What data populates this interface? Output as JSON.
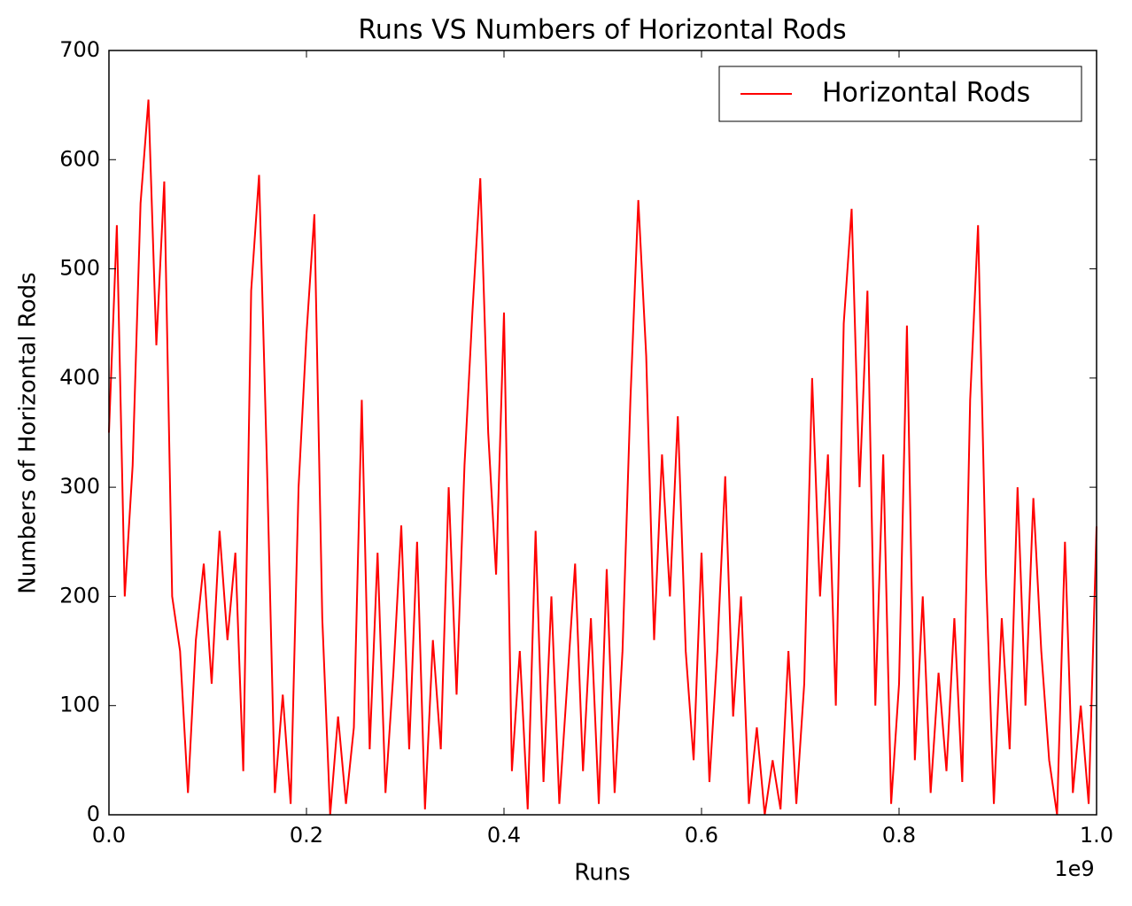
{
  "chart_data": {
    "type": "line",
    "title": "Runs VS Numbers of Horizontal Rods",
    "xlabel": "Runs",
    "ylabel": "Numbers of Horizontal Rods",
    "x_offset_label": "1e9",
    "x": [
      0.0,
      0.008,
      0.016,
      0.024,
      0.032,
      0.04,
      0.048,
      0.056,
      0.064,
      0.072,
      0.08,
      0.088,
      0.096,
      0.104,
      0.112,
      0.12,
      0.128,
      0.136,
      0.144,
      0.152,
      0.16,
      0.168,
      0.176,
      0.184,
      0.192,
      0.2,
      0.208,
      0.216,
      0.224,
      0.232,
      0.24,
      0.248,
      0.256,
      0.264,
      0.272,
      0.28,
      0.288,
      0.296,
      0.304,
      0.312,
      0.32,
      0.328,
      0.336,
      0.344,
      0.352,
      0.36,
      0.368,
      0.376,
      0.384,
      0.392,
      0.4,
      0.408,
      0.416,
      0.424,
      0.432,
      0.44,
      0.448,
      0.456,
      0.464,
      0.472,
      0.48,
      0.488,
      0.496,
      0.504,
      0.512,
      0.52,
      0.528,
      0.536,
      0.544,
      0.552,
      0.56,
      0.568,
      0.576,
      0.584,
      0.592,
      0.6,
      0.608,
      0.616,
      0.624,
      0.632,
      0.64,
      0.648,
      0.656,
      0.664,
      0.672,
      0.68,
      0.688,
      0.696,
      0.704,
      0.712,
      0.72,
      0.728,
      0.736,
      0.744,
      0.752,
      0.76,
      0.768,
      0.776,
      0.784,
      0.792,
      0.8,
      0.808,
      0.816,
      0.824,
      0.832,
      0.84,
      0.848,
      0.856,
      0.864,
      0.872,
      0.88,
      0.888,
      0.896,
      0.904,
      0.912,
      0.92,
      0.928,
      0.936,
      0.944,
      0.952,
      0.96,
      0.968,
      0.976,
      0.984,
      0.992,
      1.0
    ],
    "series": [
      {
        "name": "Horizontal Rods",
        "color": "#ff0000",
        "values": [
          350,
          540,
          200,
          320,
          560,
          655,
          430,
          580,
          200,
          150,
          20,
          160,
          230,
          120,
          260,
          160,
          240,
          40,
          480,
          586,
          320,
          20,
          110,
          10,
          300,
          440,
          550,
          180,
          0,
          90,
          10,
          80,
          380,
          60,
          240,
          20,
          130,
          265,
          60,
          250,
          5,
          160,
          60,
          300,
          110,
          320,
          460,
          583,
          350,
          220,
          460,
          40,
          150,
          5,
          260,
          30,
          200,
          10,
          120,
          230,
          40,
          180,
          10,
          225,
          20,
          150,
          380,
          563,
          420,
          160,
          330,
          200,
          365,
          150,
          50,
          240,
          30,
          150,
          310,
          90,
          200,
          10,
          80,
          0,
          50,
          5,
          150,
          10,
          120,
          400,
          200,
          330,
          100,
          450,
          555,
          300,
          480,
          100,
          330,
          10,
          120,
          448,
          50,
          200,
          20,
          130,
          40,
          180,
          30,
          380,
          540,
          220,
          10,
          180,
          60,
          300,
          100,
          290,
          150,
          50,
          0,
          250,
          20,
          100,
          10,
          264
        ]
      }
    ],
    "xlim": [
      0,
      1
    ],
    "ylim": [
      0,
      700
    ],
    "xticks": [
      {
        "value": 0,
        "label": "0.0"
      },
      {
        "value": 0.2,
        "label": "0.2"
      },
      {
        "value": 0.4,
        "label": "0.4"
      },
      {
        "value": 0.6,
        "label": "0.6"
      },
      {
        "value": 0.8,
        "label": "0.8"
      },
      {
        "value": 1,
        "label": "1.0"
      }
    ],
    "yticks": [
      0,
      100,
      200,
      300,
      400,
      500,
      600,
      700
    ],
    "legend": "upper right",
    "grid": false
  }
}
